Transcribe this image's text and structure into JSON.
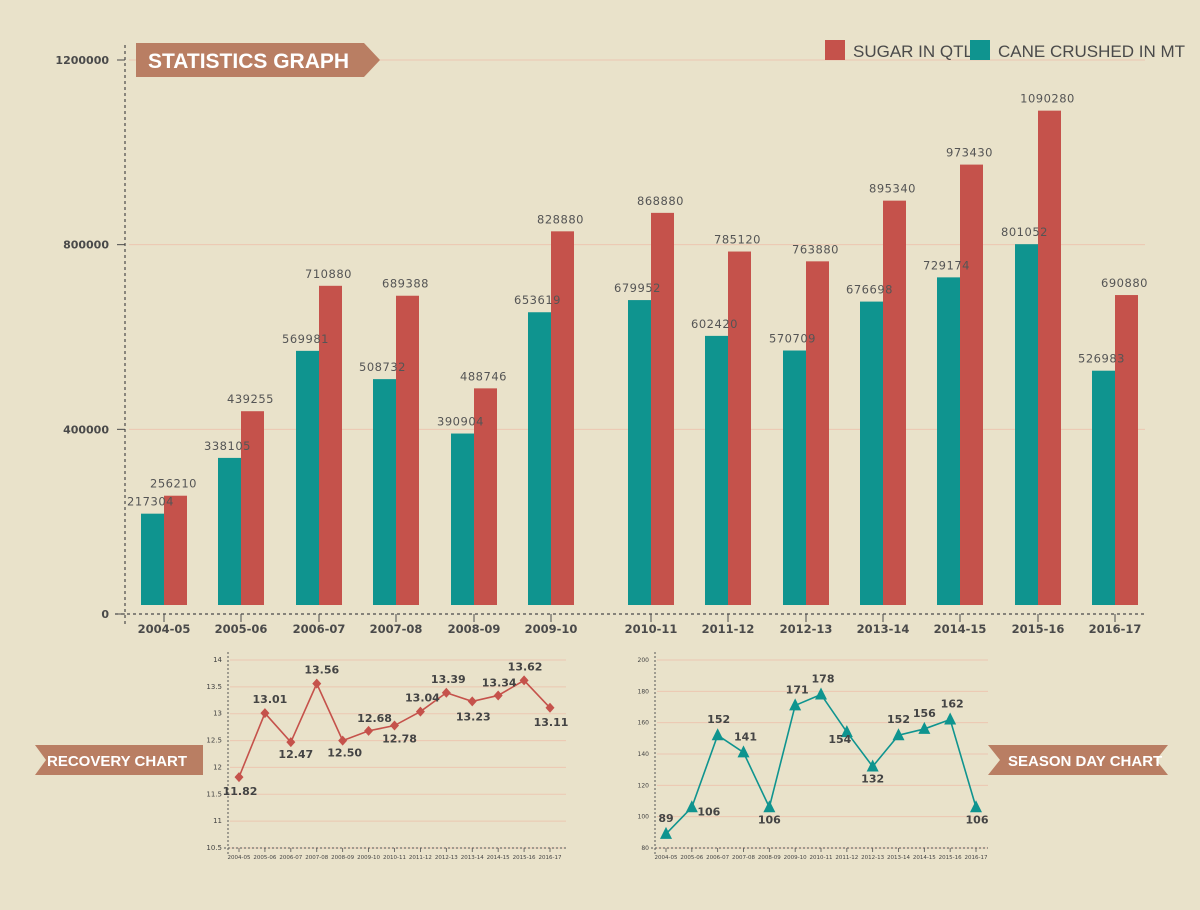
{
  "colors": {
    "background": "#e9e2ca",
    "sugar": "#c5524b",
    "cane": "#0f948f",
    "ribbon": "#b97e63",
    "grid": "#ecc7b1",
    "axis": "#4a4a4a",
    "text": "#555555"
  },
  "main": {
    "title": "STATISTICS GRAPH",
    "legend": [
      {
        "label": "SUGAR IN QTLS",
        "series": "sugar"
      },
      {
        "label": "CANE CRUSHED IN MT",
        "series": "cane"
      }
    ]
  },
  "recovery": {
    "title": "RECOVERY CHART"
  },
  "season": {
    "title": "SEASON DAY CHART"
  },
  "chart_data": [
    {
      "type": "bar",
      "title": "STATISTICS GRAPH",
      "categories": [
        "2004-05",
        "2005-06",
        "2006-07",
        "2007-08",
        "2008-09",
        "2009-10",
        "2010-11",
        "2011-12",
        "2012-13",
        "2013-14",
        "2014-15",
        "2015-16",
        "2016-17"
      ],
      "series": [
        {
          "name": "CANE CRUSHED IN MT",
          "key": "cane",
          "values": [
            217304,
            338105,
            569981,
            508732,
            390904,
            653619,
            679952,
            602420,
            570709,
            676698,
            729174,
            801052,
            526983
          ],
          "labels": [
            "217304",
            "338105",
            "569981",
            "508732",
            "390904",
            "653619",
            "679952",
            "602420",
            "570709",
            "676698",
            "729174",
            "801052",
            "526983"
          ]
        },
        {
          "name": "SUGAR IN QTLS",
          "key": "sugar",
          "values": [
            256210,
            439255,
            710880,
            689388,
            488746,
            828880,
            868880,
            785120,
            763880,
            895340,
            973430,
            1090280,
            690880
          ],
          "labels": [
            "256210",
            "439255",
            "710880",
            "689388",
            "488746",
            "828880",
            "868880",
            "785120",
            "763880",
            "895340",
            "973430",
            "1090280",
            "690880"
          ]
        }
      ],
      "yticks": [
        {
          "value": 0,
          "label": "0"
        },
        {
          "value": 400000,
          "label": "400000"
        },
        {
          "value": 800000,
          "label": "800000"
        },
        {
          "value": 1200000,
          "label": "1200000"
        }
      ],
      "ylim": [
        0,
        1200000
      ],
      "legend": "top-right",
      "grid": true
    },
    {
      "type": "line",
      "title": "RECOVERY CHART",
      "categories": [
        "2004-05",
        "2005-06",
        "2006-07",
        "2007-08",
        "2008-09",
        "2009-10",
        "2010-11",
        "2011-12",
        "2012-13",
        "2013-14",
        "2014-15",
        "2015-16",
        "2016-17"
      ],
      "series": [
        {
          "values": [
            11.82,
            13.01,
            12.47,
            13.56,
            12.5,
            12.68,
            12.78,
            13.04,
            13.39,
            13.23,
            13.34,
            13.62,
            13.11
          ],
          "labels": [
            "11.82",
            "13.01",
            "12.47",
            "13.56",
            "12.50",
            "12.68",
            "12.78",
            "13.04",
            "13.39",
            "13.23",
            "13.34",
            "13.62",
            "13.11"
          ]
        }
      ],
      "yticks": [
        "10.5",
        "11",
        "11.5",
        "12",
        "12.5",
        "13",
        "13.5",
        "14"
      ],
      "ylim": [
        10.5,
        14
      ],
      "grid": true,
      "marker": "diamond"
    },
    {
      "type": "line",
      "title": "SEASON DAY CHART",
      "categories": [
        "2004-05",
        "2005-06",
        "2006-07",
        "2007-08",
        "2008-09",
        "2009-10",
        "2010-11",
        "2011-12",
        "2012-13",
        "2013-14",
        "2014-15",
        "2015-16",
        "2016-17"
      ],
      "series": [
        {
          "values": [
            89,
            106,
            152,
            141,
            106,
            171,
            178,
            154,
            132,
            152,
            156,
            162,
            106
          ],
          "labels": [
            "89",
            "106",
            "152",
            "141",
            "106",
            "171",
            "178",
            "154",
            "132",
            "152",
            "156",
            "162",
            "106"
          ]
        }
      ],
      "yticks": [
        "80",
        "100",
        "120",
        "140",
        "160",
        "180",
        "200"
      ],
      "ylim": [
        80,
        200
      ],
      "grid": true,
      "marker": "triangle"
    }
  ]
}
